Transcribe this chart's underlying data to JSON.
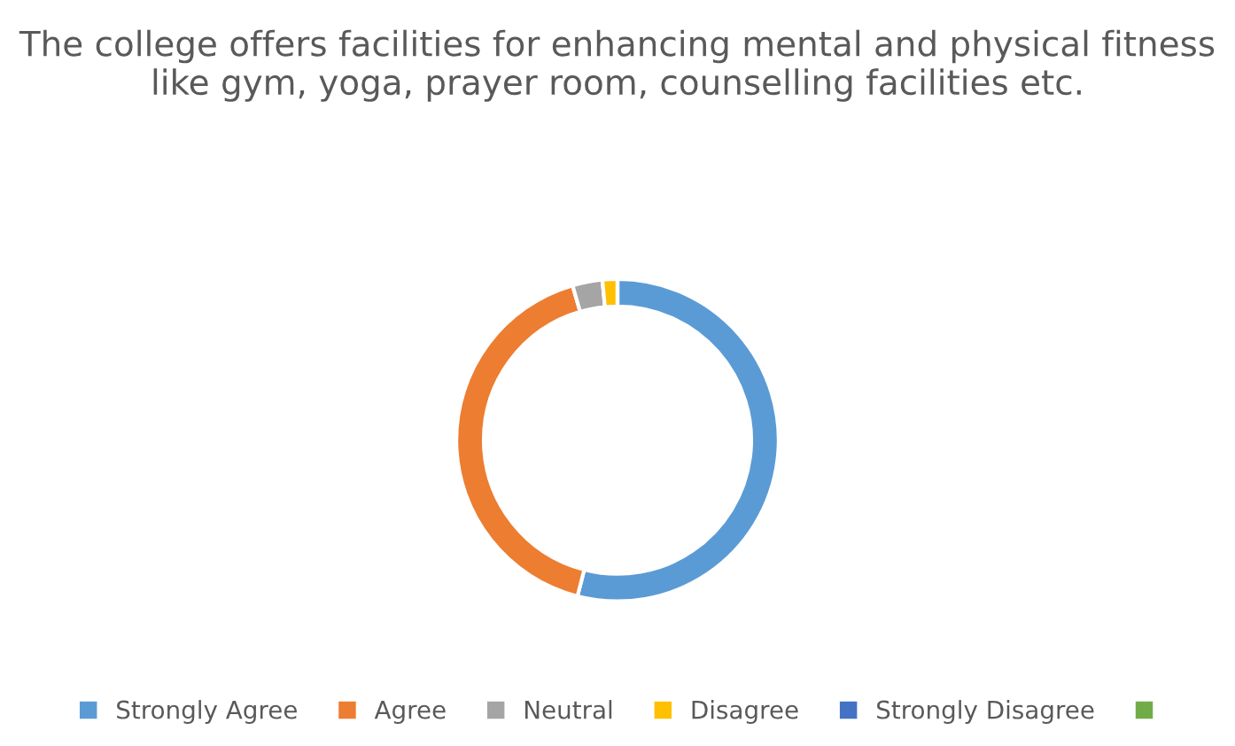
{
  "chart_data": {
    "type": "donut",
    "title": "The college offers facilities for enhancing mental and physical fitness like gym, yoga, prayer room, counselling facilities etc.",
    "categories": [
      "Strongly Agree",
      "Agree",
      "Neutral",
      "Disagree",
      "Strongly Disagree",
      null
    ],
    "values": [
      54,
      41.5,
      3,
      1.5,
      0,
      0
    ],
    "colors": [
      "#5b9bd5",
      "#ed7d31",
      "#a5a5a5",
      "#ffc000",
      "#4472c4",
      "#70ad47"
    ],
    "legend": "bottom"
  }
}
